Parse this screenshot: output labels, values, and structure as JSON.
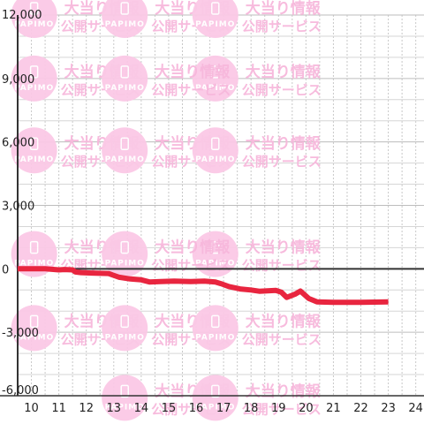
{
  "watermark": {
    "line1": "大当り情報",
    "line2": "公開サービス",
    "brand": "PAPIMO"
  },
  "chart_data": {
    "type": "line",
    "title": "",
    "xlabel": "",
    "ylabel": "",
    "xlim": [
      9.5,
      24.3
    ],
    "ylim": [
      -6000,
      12000
    ],
    "x_ticks": [
      10,
      11,
      12,
      13,
      14,
      15,
      16,
      17,
      18,
      19,
      20,
      21,
      22,
      23,
      24
    ],
    "y_ticks": [
      -6000,
      -3000,
      0,
      3000,
      6000,
      9000,
      12000
    ],
    "y_tick_labels": [
      "-6,000",
      "-3,000",
      "0",
      "3,000",
      "6,000",
      "9,000",
      "12,000"
    ],
    "grid": true,
    "legend": "none",
    "series": [
      {
        "color": "#e8253f",
        "x": [
          9.5,
          10.5,
          11.0,
          11.2,
          11.5,
          11.6,
          11.8,
          12.2,
          12.8,
          13.2,
          13.6,
          14.0,
          14.3,
          14.7,
          15.2,
          15.8,
          16.3,
          16.7,
          16.9,
          17.2,
          17.6,
          18.0,
          18.3,
          18.6,
          18.9,
          19.1,
          19.3,
          19.6,
          19.8,
          20.1,
          20.4,
          21.0,
          22.0,
          23.0
        ],
        "y": [
          0,
          0,
          -50,
          -30,
          -50,
          -150,
          -180,
          -200,
          -220,
          -400,
          -480,
          -520,
          -620,
          -600,
          -580,
          -600,
          -580,
          -620,
          -700,
          -840,
          -950,
          -1000,
          -1060,
          -1040,
          -1020,
          -1100,
          -1350,
          -1200,
          -1050,
          -1400,
          -1560,
          -1580,
          -1580,
          -1560
        ]
      }
    ]
  }
}
